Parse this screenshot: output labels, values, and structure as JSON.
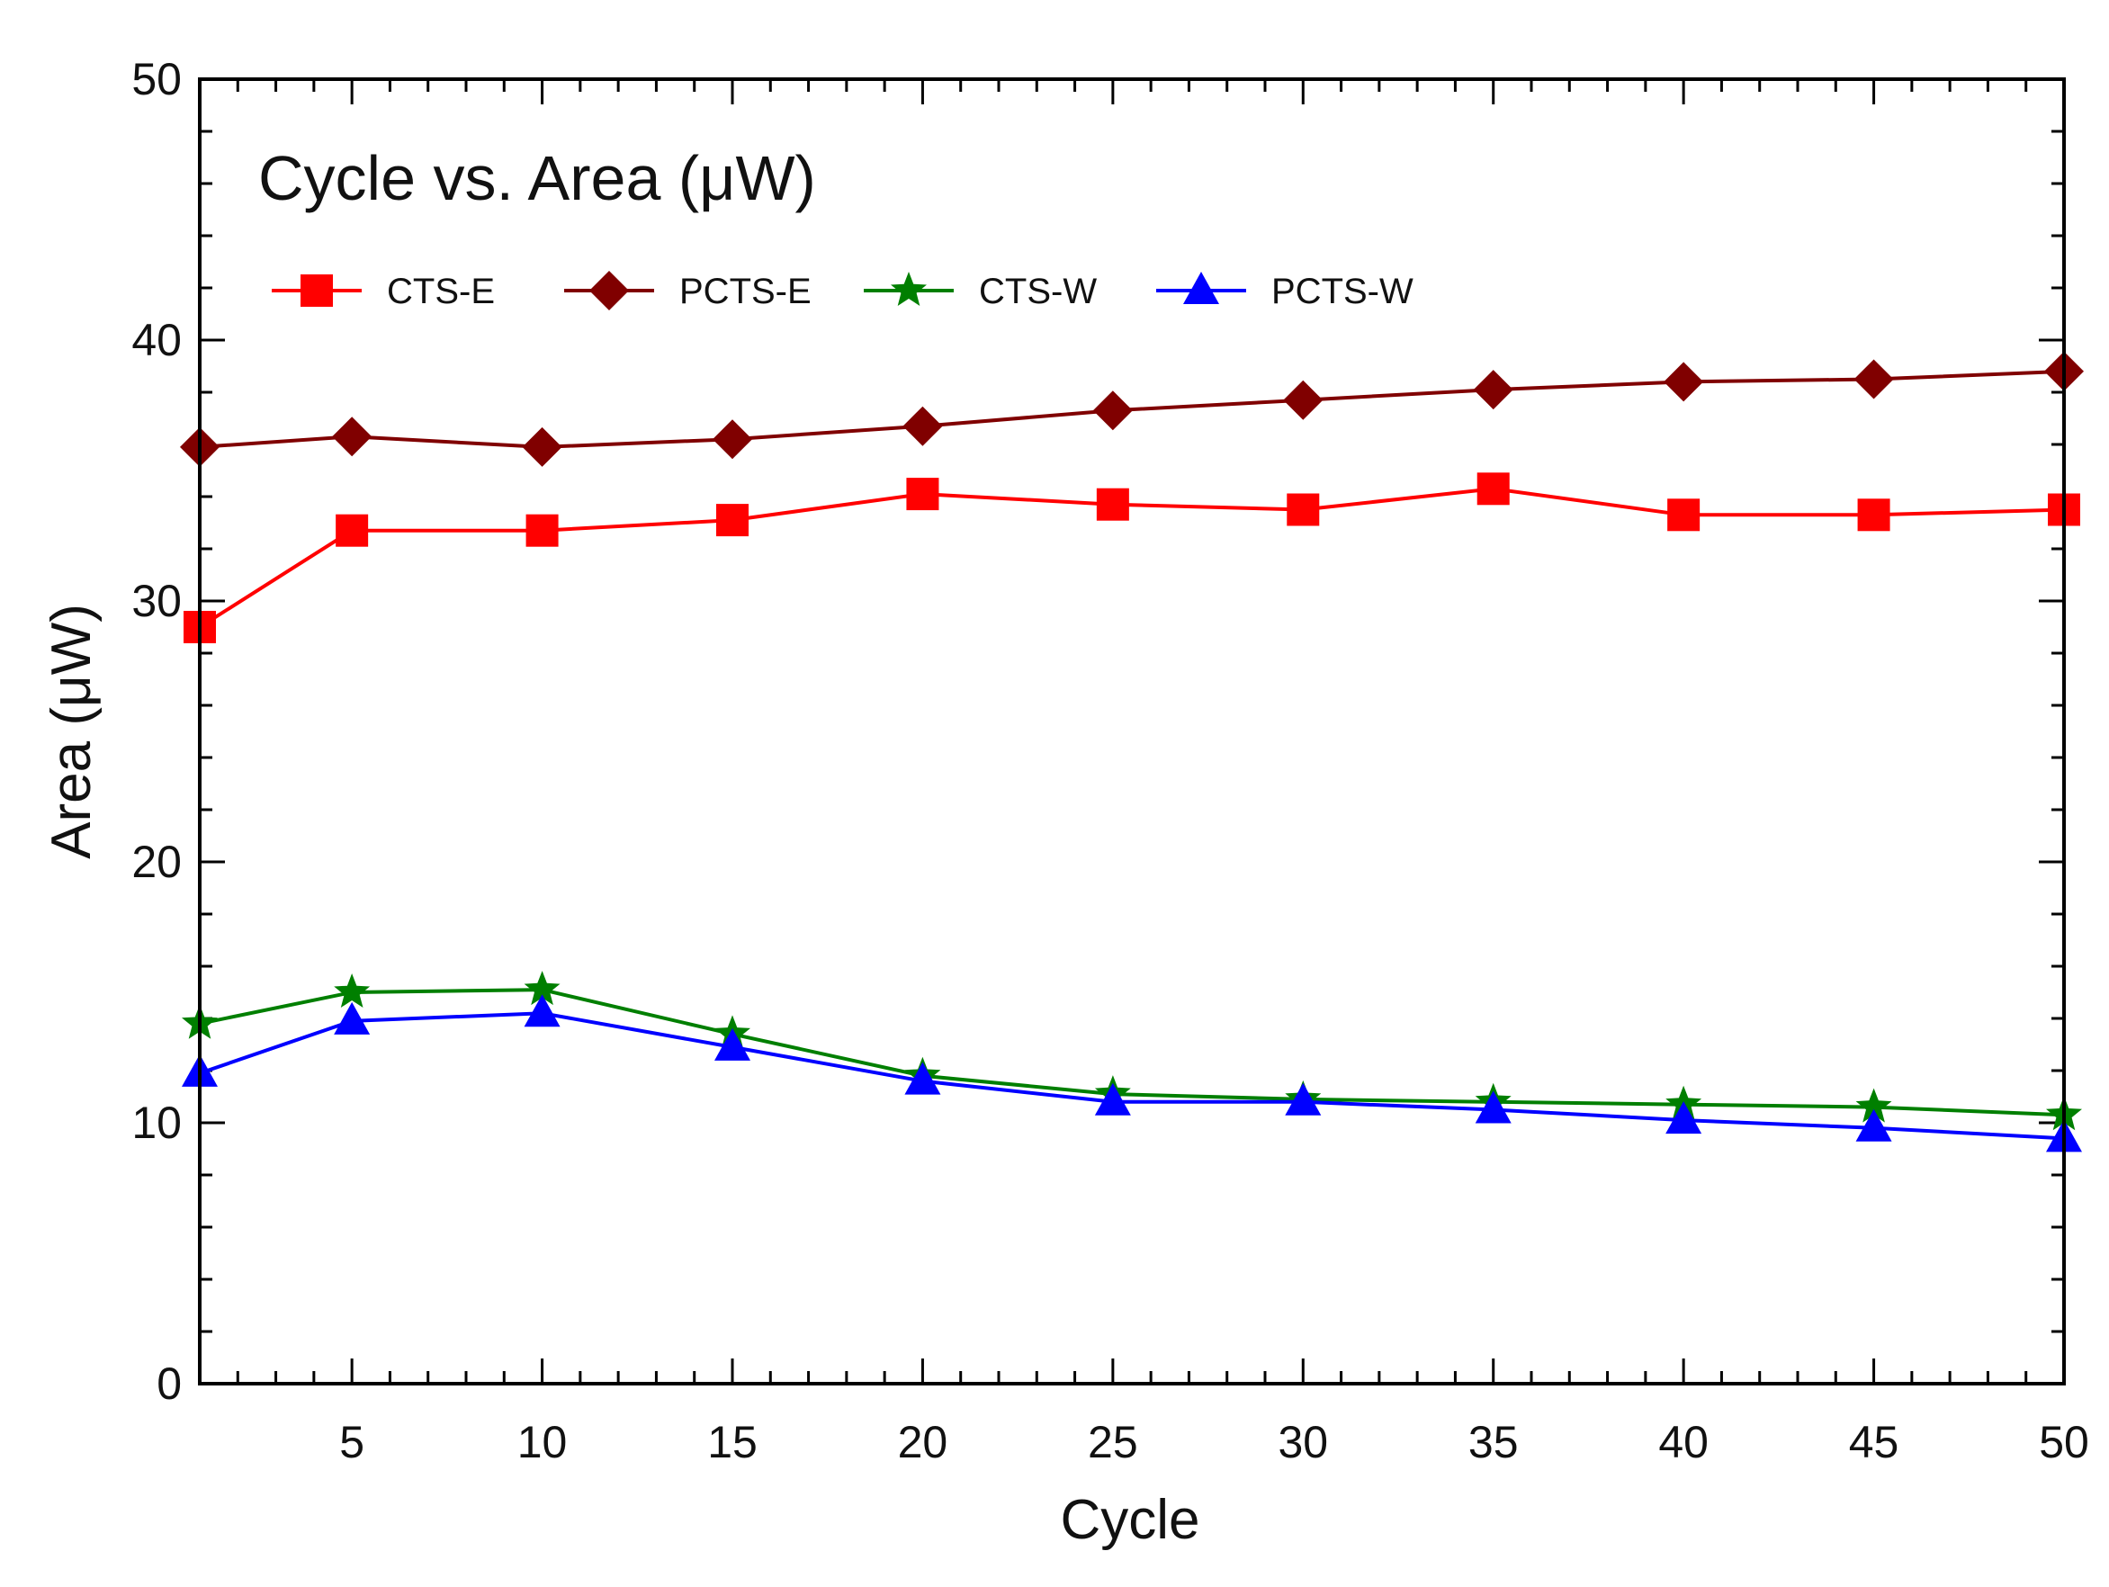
{
  "chart_data": {
    "type": "line",
    "title": "Cycle vs. Area (μW)",
    "xlabel": "Cycle",
    "ylabel": "Area (μW)",
    "xlim": [
      1,
      50
    ],
    "ylim": [
      0,
      50
    ],
    "x_ticks": [
      5,
      10,
      15,
      20,
      25,
      30,
      35,
      40,
      45,
      50
    ],
    "y_ticks": [
      0,
      10,
      20,
      30,
      40,
      50
    ],
    "grid": false,
    "legend_position": "top-left",
    "x": [
      1,
      5,
      10,
      15,
      20,
      25,
      30,
      35,
      40,
      45,
      50
    ],
    "series": [
      {
        "name": "CTS-E",
        "color": "#ff0000",
        "marker": "square",
        "values": [
          29.0,
          32.7,
          32.7,
          33.1,
          34.1,
          33.7,
          33.5,
          34.3,
          33.3,
          33.3,
          33.5
        ]
      },
      {
        "name": "PCTS-E",
        "color": "#800000",
        "marker": "diamond",
        "values": [
          35.9,
          36.3,
          35.9,
          36.2,
          36.7,
          37.3,
          37.7,
          38.1,
          38.4,
          38.5,
          38.8
        ]
      },
      {
        "name": "CTS-W",
        "color": "#007f00",
        "marker": "star",
        "values": [
          13.8,
          15.0,
          15.1,
          13.4,
          11.8,
          11.1,
          10.9,
          10.8,
          10.7,
          10.6,
          10.3
        ]
      },
      {
        "name": "PCTS-W",
        "color": "#0000ff",
        "marker": "triangle",
        "values": [
          11.9,
          13.9,
          14.2,
          12.9,
          11.6,
          10.8,
          10.8,
          10.5,
          10.1,
          9.8,
          9.4
        ]
      }
    ]
  }
}
